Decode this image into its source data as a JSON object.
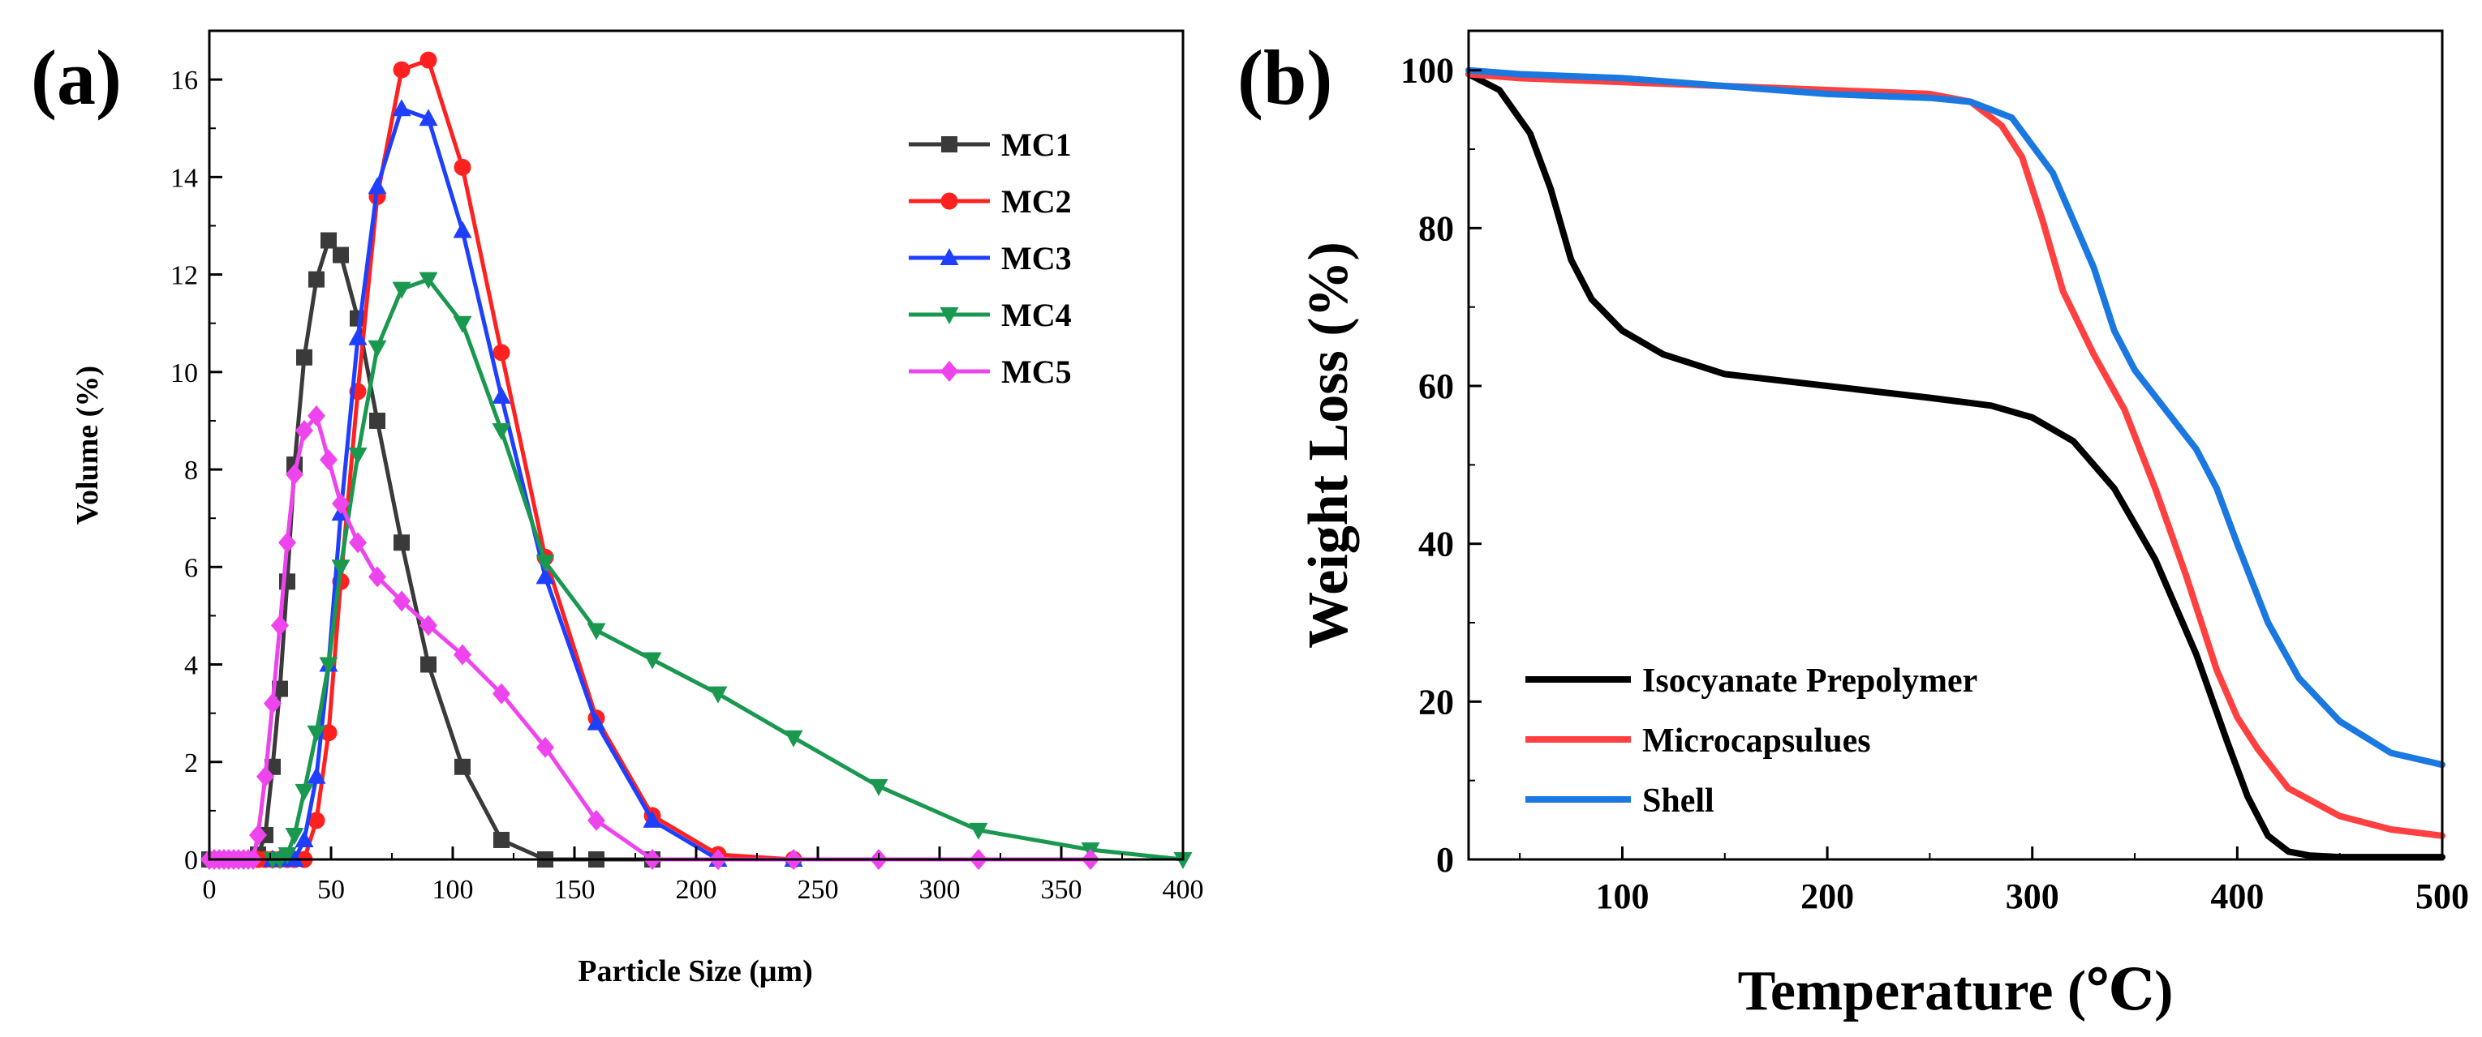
{
  "panel_a": {
    "label": "(a)",
    "chart_data": {
      "type": "line",
      "title": "",
      "xlabel": "Particle Size (μm)",
      "ylabel": "Volume (%)",
      "xlim": [
        0,
        400
      ],
      "ylim": [
        0,
        17
      ],
      "xticks": [
        0,
        50,
        100,
        150,
        200,
        250,
        300,
        350,
        400
      ],
      "yticks": [
        0,
        2,
        4,
        6,
        8,
        10,
        12,
        14,
        16
      ],
      "x_tick_labels": [
        "0",
        "50",
        "100",
        "150",
        "200",
        "250",
        "300",
        "350",
        "400"
      ],
      "y_tick_labels": [
        "0",
        "2",
        "4",
        "6",
        "8",
        "10",
        "12",
        "14",
        "16"
      ],
      "legend_position": "top-right",
      "series": [
        {
          "name": "MC1",
          "color": "#3a3a3a",
          "marker": "square",
          "x": [
            0,
            2,
            4,
            6,
            8,
            10,
            12,
            14,
            16,
            18,
            20,
            23,
            26,
            29,
            32,
            35,
            39,
            44,
            49,
            54,
            61,
            69,
            79,
            90,
            104,
            120,
            138,
            159,
            182
          ],
          "y": [
            0,
            0,
            0,
            0,
            0,
            0,
            0,
            0,
            0,
            0,
            0.1,
            0.5,
            1.9,
            3.5,
            5.7,
            8.1,
            10.3,
            11.9,
            12.7,
            12.4,
            11.1,
            9.0,
            6.5,
            4.0,
            1.9,
            0.4,
            0,
            0,
            0
          ]
        },
        {
          "name": "MC2",
          "color": "#ff2020",
          "marker": "circle",
          "x": [
            20,
            23,
            26,
            29,
            32,
            35,
            39,
            44,
            49,
            54,
            61,
            69,
            79,
            90,
            104,
            120,
            138,
            159,
            182,
            209,
            240
          ],
          "y": [
            0,
            0,
            0,
            0,
            0,
            0,
            0,
            0.8,
            2.6,
            5.7,
            9.6,
            13.6,
            16.2,
            16.4,
            14.2,
            10.4,
            6.2,
            2.9,
            0.9,
            0.1,
            0
          ]
        },
        {
          "name": "MC3",
          "color": "#1f3fff",
          "marker": "triangle-up",
          "x": [
            26,
            29,
            32,
            35,
            39,
            44,
            49,
            54,
            61,
            69,
            79,
            90,
            104,
            120,
            138,
            159,
            182,
            209,
            240
          ],
          "y": [
            0,
            0,
            0,
            0,
            0.4,
            1.7,
            4.0,
            7.1,
            10.7,
            13.8,
            15.4,
            15.2,
            12.9,
            9.5,
            5.8,
            2.8,
            0.8,
            0,
            0
          ]
        },
        {
          "name": "MC4",
          "color": "#1a9850",
          "marker": "triangle-down",
          "x": [
            26,
            29,
            32,
            35,
            39,
            44,
            49,
            54,
            61,
            69,
            79,
            90,
            104,
            120,
            138,
            159,
            182,
            209,
            240,
            275,
            316,
            362,
            400
          ],
          "y": [
            0,
            0,
            0.1,
            0.5,
            1.4,
            2.6,
            4.0,
            6.0,
            8.3,
            10.5,
            11.7,
            11.9,
            11.0,
            8.8,
            6.1,
            4.7,
            4.1,
            3.4,
            2.5,
            1.5,
            0.6,
            0.2,
            0
          ]
        },
        {
          "name": "MC5",
          "color": "#ee44ee",
          "marker": "diamond",
          "x": [
            0,
            2,
            4,
            6,
            8,
            10,
            12,
            14,
            16,
            18,
            20,
            23,
            26,
            29,
            32,
            35,
            39,
            44,
            49,
            54,
            61,
            69,
            79,
            90,
            104,
            120,
            138,
            159,
            182,
            209,
            240,
            275,
            316,
            362
          ],
          "y": [
            0,
            0,
            0,
            0,
            0,
            0,
            0,
            0,
            0,
            0,
            0.5,
            1.7,
            3.2,
            4.8,
            6.5,
            7.9,
            8.8,
            9.1,
            8.2,
            7.3,
            6.5,
            5.8,
            5.3,
            4.8,
            4.2,
            3.4,
            2.3,
            0.8,
            0,
            0,
            0,
            0,
            0,
            0
          ]
        }
      ]
    }
  },
  "panel_b": {
    "label": "(b)",
    "chart_data": {
      "type": "line",
      "title": "",
      "xlabel": "Temperature (℃)",
      "ylabel": "Weight Loss (%)",
      "xlim": [
        25,
        500
      ],
      "ylim": [
        0,
        105
      ],
      "xticks": [
        100,
        200,
        300,
        400,
        500
      ],
      "yticks": [
        0,
        20,
        40,
        60,
        80,
        100
      ],
      "x_tick_labels": [
        "100",
        "200",
        "300",
        "400",
        "500"
      ],
      "y_tick_labels": [
        "0",
        "20",
        "40",
        "60",
        "80",
        "100"
      ],
      "legend_position": "bottom-left",
      "series": [
        {
          "name": "Isocyanate Prepolymer",
          "color": "#000000",
          "x": [
            25,
            40,
            55,
            65,
            75,
            85,
            100,
            120,
            150,
            200,
            250,
            280,
            300,
            320,
            340,
            360,
            380,
            395,
            405,
            415,
            425,
            435,
            450,
            500
          ],
          "y": [
            99.5,
            97.5,
            92,
            85,
            76,
            71,
            67,
            64,
            61.5,
            60,
            58.5,
            57.5,
            56,
            53,
            47,
            38,
            26,
            15,
            8,
            3,
            1,
            0.5,
            0.3,
            0.3
          ]
        },
        {
          "name": "Microcapsulues",
          "color": "#ff4040",
          "x": [
            25,
            50,
            100,
            150,
            200,
            250,
            270,
            285,
            295,
            305,
            315,
            330,
            345,
            360,
            375,
            390,
            400,
            410,
            425,
            450,
            475,
            500
          ],
          "y": [
            99.5,
            99,
            98.5,
            98,
            97.5,
            97,
            96,
            93,
            89,
            81,
            72,
            64,
            57,
            47,
            36,
            24,
            18,
            14,
            9,
            5.5,
            3.8,
            3
          ]
        },
        {
          "name": "Shell",
          "color": "#1a78e0",
          "x": [
            25,
            50,
            100,
            150,
            200,
            250,
            270,
            290,
            310,
            330,
            340,
            350,
            365,
            380,
            390,
            400,
            415,
            430,
            450,
            475,
            500
          ],
          "y": [
            100,
            99.5,
            99,
            98,
            97,
            96.5,
            96,
            94,
            87,
            75,
            67,
            62,
            57,
            52,
            47,
            40,
            30,
            23,
            17.5,
            13.5,
            12
          ]
        }
      ]
    }
  }
}
